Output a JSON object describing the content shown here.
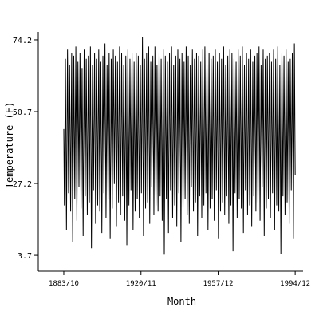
{
  "chart_data": {
    "type": "line",
    "x_label": "Month",
    "y_label": "Temperature (F)",
    "color": "#000000",
    "x": [
      1883.75,
      1884.04,
      1884.54,
      1885.04,
      1885.54,
      1886.04,
      1886.54,
      1887.04,
      1887.54,
      1888.04,
      1888.54,
      1889.04,
      1889.54,
      1890.04,
      1890.54,
      1891.04,
      1891.54,
      1892.04,
      1892.54,
      1893.04,
      1893.54,
      1894.04,
      1894.54,
      1895.04,
      1895.54,
      1896.04,
      1896.54,
      1897.04,
      1897.54,
      1898.04,
      1898.54,
      1899.04,
      1899.54,
      1900.04,
      1900.54,
      1901.04,
      1901.54,
      1902.04,
      1902.54,
      1903.04,
      1903.54,
      1904.04,
      1904.54,
      1905.04,
      1905.54,
      1906.04,
      1906.54,
      1907.04,
      1907.54,
      1908.04,
      1908.54,
      1909.04,
      1909.54,
      1910.04,
      1910.54,
      1911.04,
      1911.54,
      1912.04,
      1912.54,
      1913.04,
      1913.54,
      1914.04,
      1914.54,
      1915.04,
      1915.54,
      1916.04,
      1916.54,
      1917.04,
      1917.54,
      1918.04,
      1918.54,
      1919.04,
      1919.54,
      1920.04,
      1920.54,
      1921.04,
      1921.54,
      1922.04,
      1922.54,
      1923.04,
      1923.54,
      1924.04,
      1924.54,
      1925.04,
      1925.54,
      1926.04,
      1926.54,
      1927.04,
      1927.54,
      1928.04,
      1928.54,
      1929.04,
      1929.54,
      1930.04,
      1930.54,
      1931.04,
      1931.54,
      1932.04,
      1932.54,
      1933.04,
      1933.54,
      1934.04,
      1934.54,
      1935.04,
      1935.54,
      1936.04,
      1936.54,
      1937.04,
      1937.54,
      1938.04,
      1938.54,
      1939.04,
      1939.54,
      1940.04,
      1940.54,
      1941.04,
      1941.54,
      1942.04,
      1942.54,
      1943.04,
      1943.54,
      1944.04,
      1944.54,
      1945.04,
      1945.54,
      1946.04,
      1946.54,
      1947.04,
      1947.54,
      1948.04,
      1948.54,
      1949.04,
      1949.54,
      1950.04,
      1950.54,
      1951.04,
      1951.54,
      1952.04,
      1952.54,
      1953.04,
      1953.54,
      1954.04,
      1954.54,
      1955.04,
      1955.54,
      1956.04,
      1956.54,
      1957.04,
      1957.54,
      1958.04,
      1958.54,
      1959.04,
      1959.54,
      1960.04,
      1960.54,
      1961.04,
      1961.54,
      1962.04,
      1962.54,
      1963.04,
      1963.54,
      1964.04,
      1964.54,
      1965.04,
      1965.54,
      1966.04,
      1966.54,
      1967.04,
      1967.54,
      1968.04,
      1968.54,
      1969.04,
      1969.54,
      1970.04,
      1970.54,
      1971.04,
      1971.54,
      1972.04,
      1972.54,
      1973.04,
      1973.54,
      1974.04,
      1974.54,
      1975.04,
      1975.54,
      1976.04,
      1976.54,
      1977.04,
      1977.54,
      1978.04,
      1978.54,
      1979.04,
      1979.54,
      1980.04,
      1980.54,
      1981.04,
      1981.54,
      1982.04,
      1982.54,
      1983.04,
      1983.54,
      1984.04,
      1984.54,
      1985.04,
      1985.54,
      1986.04,
      1986.54,
      1987.04,
      1987.54,
      1988.04,
      1988.54,
      1989.04,
      1989.54,
      1990.04,
      1990.54,
      1991.04,
      1991.54,
      1992.04,
      1992.54,
      1993.04,
      1993.54,
      1994.04,
      1994.54,
      1994.92
    ],
    "values": [
      45,
      20,
      68,
      12,
      71,
      24,
      66,
      18,
      70,
      8,
      69,
      22,
      72,
      15,
      67,
      26,
      70,
      19,
      65,
      10,
      71,
      23,
      68,
      17,
      69,
      21,
      72,
      6,
      66,
      25,
      70,
      14,
      68,
      20,
      71,
      18,
      67,
      11,
      69,
      24,
      73,
      16,
      66,
      22,
      70,
      9,
      68,
      19,
      71,
      27,
      69,
      13,
      67,
      21,
      72,
      17,
      70,
      23,
      66,
      15,
      69,
      7,
      71,
      20,
      68,
      25,
      70,
      12,
      67,
      18,
      70,
      22,
      69,
      16,
      66,
      24,
      75,
      10,
      68,
      19,
      70,
      21,
      72,
      14,
      67,
      26,
      69,
      17,
      72,
      20,
      66,
      18,
      70,
      23,
      68,
      15,
      71,
      3.9,
      69,
      22,
      67,
      11,
      70,
      25,
      72,
      16,
      66,
      20,
      69,
      13,
      71,
      24,
      68,
      8,
      70,
      19,
      67,
      22,
      72,
      17,
      69,
      14,
      66,
      26,
      71,
      18,
      68,
      21,
      70,
      10,
      69,
      23,
      67,
      16,
      71,
      20,
      72,
      24,
      66,
      12,
      70,
      19,
      68,
      22,
      69,
      15,
      71,
      25,
      67,
      9,
      70,
      18,
      68,
      21,
      72,
      17,
      66,
      23,
      69,
      14,
      71,
      20,
      70,
      5,
      68,
      24,
      67,
      16,
      71,
      22,
      69,
      19,
      72,
      11,
      66,
      25,
      70,
      17,
      68,
      20,
      71,
      13,
      67,
      23,
      69,
      18,
      70,
      21,
      72,
      15,
      66,
      26,
      71,
      10,
      68,
      19,
      69,
      22,
      70,
      16,
      67,
      24,
      71,
      12,
      68,
      20,
      72,
      18,
      66,
      4,
      70,
      23,
      69,
      17,
      71,
      21,
      67,
      14,
      68,
      25,
      70,
      9,
      73,
      30
    ],
    "xlim": [
      1871.5,
      1998.7
    ],
    "xticks": [
      {
        "value": 1883.75,
        "label": "1883/10"
      },
      {
        "value": 1920.833,
        "label": "1920/11"
      },
      {
        "value": 1957.917,
        "label": "1957/12"
      },
      {
        "value": 1994.917,
        "label": "1994/12"
      }
    ],
    "ylim": [
      -1.5,
      76.8
    ],
    "yticks": [
      3.7,
      27.2,
      50.7,
      74.2
    ]
  }
}
